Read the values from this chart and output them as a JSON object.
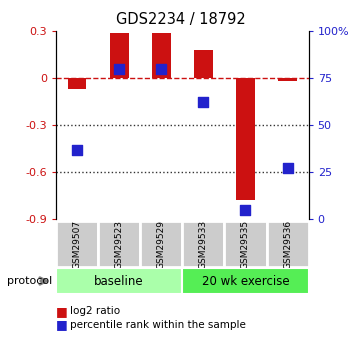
{
  "title": "GDS2234 / 18792",
  "samples": [
    "GSM29507",
    "GSM29523",
    "GSM29529",
    "GSM29533",
    "GSM29535",
    "GSM29536"
  ],
  "log2_ratio": [
    -0.07,
    0.29,
    0.29,
    0.18,
    -0.78,
    -0.02
  ],
  "percentile_rank": [
    37,
    80,
    80,
    62,
    5,
    27
  ],
  "ylim_left": [
    -0.9,
    0.3
  ],
  "yticks_left": [
    -0.9,
    -0.6,
    -0.3,
    0.0,
    0.3
  ],
  "yticks_right": [
    0,
    25,
    50,
    75,
    100
  ],
  "ytick_labels_right": [
    "0",
    "25",
    "50",
    "75",
    "100%"
  ],
  "bar_color": "#cc1111",
  "dot_color": "#2222cc",
  "dashed_line_color": "#cc1111",
  "dotted_line_color": "#333333",
  "legend_items": [
    {
      "label": "log2 ratio",
      "color": "#cc1111"
    },
    {
      "label": "percentile rank within the sample",
      "color": "#2222cc"
    }
  ],
  "protocol_label": "protocol",
  "bar_width": 0.45,
  "dot_size": 50,
  "group1_color": "#aaffaa",
  "group2_color": "#55ee55",
  "sample_box_color": "#cccccc"
}
